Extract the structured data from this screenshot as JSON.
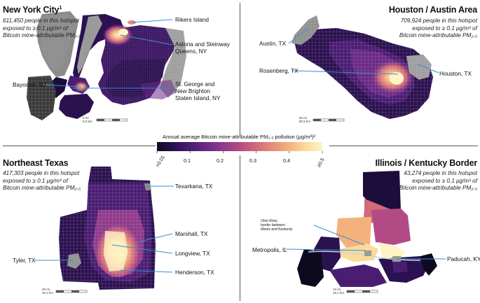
{
  "legend": {
    "title": "Annual average Bitcoin mine-attributable PM₂.₅ pollution (μg/m³)²",
    "ticks": [
      ">0.01",
      "0.1",
      "0.2",
      "0.3",
      "0.4",
      "≥0.5"
    ],
    "colors": [
      "#0d0a1f",
      "#2b1150",
      "#4a1d72",
      "#6b2a86",
      "#8f3a8b",
      "#b24b85",
      "#d06a7c",
      "#e68d77",
      "#f3b27d",
      "#fadb9a",
      "#fef3c4"
    ]
  },
  "panels": {
    "nyc": {
      "title": "New York City",
      "title_sup": "1",
      "stat_lines": [
        "611,450 people in this hotspot",
        "exposed to ≥ 0.1 μg/m³ of",
        "Bitcoin mine-attributable PM₂.₅"
      ],
      "labels": {
        "rikers": "Rikers Island",
        "astoria_1": "Astoria and Steinway",
        "astoria_2": "Queens, NY",
        "bayonne": "Bayonne, NJ",
        "stgeorge_1": "St. George and",
        "stgeorge_2": "New Brighton",
        "stgeorge_3": "Staten Island, NY"
      },
      "scale_mi": "5 mi",
      "scale_km": "8.0 km"
    },
    "houston": {
      "title": "Houston / Austin Area",
      "stat_lines": [
        "709,924 people in this hotspot",
        "exposed to ≥ 0.1 μg/m³ of",
        "Bitcoin mine-attributable PM₂.₅"
      ],
      "labels": {
        "austin": "Austin, TX",
        "rosenberg": "Rosenberg, TX",
        "houston": "Houston, TX"
      },
      "scale_mi": "50 mi",
      "scale_km": "80.5 km"
    },
    "netexas": {
      "title": "Northeast Texas",
      "stat_lines": [
        "417,303 people in this hotspot",
        "exposed to ≥ 0.1 μg/m³ of",
        "Bitcoin mine-attributable PM₂.₅"
      ],
      "labels": {
        "texarkana": "Texarkana, TX",
        "marshall": "Marshall, TX",
        "longview": "Longview, TX",
        "tyler": "Tyler, TX",
        "henderson": "Henderson, TX"
      },
      "scale_mi": "20 mi",
      "scale_km": "32.2 km"
    },
    "ilky": {
      "title": "Illinois / Kentucky Border",
      "stat_lines": [
        "43,274 people in this hotspot",
        "exposed to ≥ 0.1 μg/m³ of",
        "Bitcoin mine-attributable PM₂.₅"
      ],
      "labels": {
        "ohio_1": "Ohio River,",
        "ohio_2": "border between",
        "ohio_3": "Illinois and Kentucky",
        "metropolis": "Metropolis, IL",
        "paducah": "Paducah, KY"
      },
      "scale_mi": "10 mi",
      "scale_km": "16.1 km"
    }
  }
}
